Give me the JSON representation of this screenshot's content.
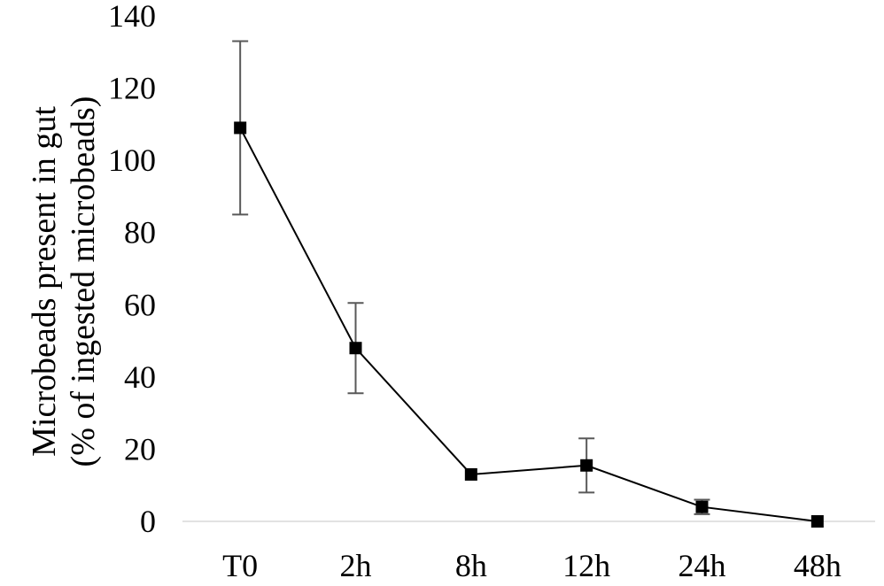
{
  "chart_data": {
    "type": "line",
    "title": "",
    "xlabel": "",
    "ylabel_line1": "Microbeads present in gut",
    "ylabel_line2": "(% of ingested microbeads)",
    "categories": [
      "T0",
      "2h",
      "8h",
      "12h",
      "24h",
      "48h"
    ],
    "series": [
      {
        "values": [
          109,
          48,
          13,
          15.5,
          4,
          0
        ],
        "error": [
          24,
          12.5,
          0,
          7.5,
          2,
          0
        ],
        "color": "#000000",
        "marker": "square"
      }
    ],
    "ylim": [
      0,
      140
    ],
    "yticks": [
      0,
      20,
      40,
      60,
      80,
      100,
      120,
      140
    ],
    "grid": false,
    "legend": "none",
    "colors": {
      "axis": "#d9d9d9",
      "errorbar": "#595959",
      "line": "#000000"
    }
  }
}
